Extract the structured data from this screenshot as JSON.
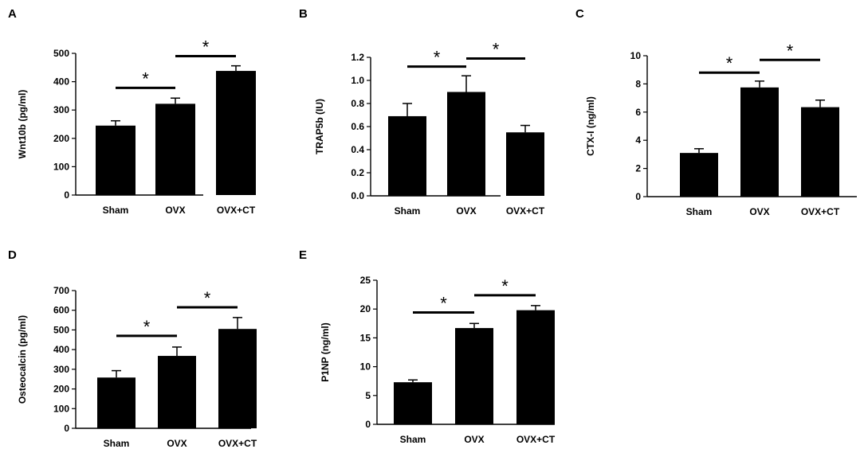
{
  "chart_data": [
    {
      "type": "bar",
      "panel": "A",
      "ylabel": "Wnt10b (pg/ml)",
      "categories": [
        "Sham",
        "OVX",
        "OVX+CT"
      ],
      "values": [
        245,
        322,
        438
      ],
      "errors": [
        17,
        20,
        18
      ],
      "ylim": [
        0,
        500
      ],
      "yticks": [
        0,
        100,
        200,
        300,
        400,
        500
      ],
      "significance": [
        {
          "from": 0,
          "to": 1,
          "y": 378,
          "label": "*"
        },
        {
          "from": 1,
          "to": 2,
          "y": 490,
          "label": "*"
        }
      ]
    },
    {
      "type": "bar",
      "panel": "B",
      "ylabel": "TRAP5b (IU)",
      "categories": [
        "Sham",
        "OVX",
        "OVX+CT"
      ],
      "values": [
        0.69,
        0.9,
        0.55
      ],
      "errors": [
        0.11,
        0.14,
        0.06
      ],
      "ylim": [
        0,
        1.2
      ],
      "yticks": [
        "0.0",
        "0.2",
        "0.4",
        "0.6",
        "0.8",
        "1.0",
        "1.2"
      ],
      "significance": [
        {
          "from": 0,
          "to": 1,
          "y": 1.12,
          "label": "*"
        },
        {
          "from": 1,
          "to": 2,
          "y": 1.19,
          "label": "*"
        }
      ]
    },
    {
      "type": "bar",
      "panel": "C",
      "ylabel": "CTX-I (ng/ml)",
      "categories": [
        "Sham",
        "OVX",
        "OVX+CT"
      ],
      "values": [
        3.1,
        7.75,
        6.35
      ],
      "errors": [
        0.3,
        0.45,
        0.5
      ],
      "ylim": [
        0,
        10
      ],
      "yticks": [
        0,
        2,
        4,
        6,
        8,
        10
      ],
      "significance": [
        {
          "from": 0,
          "to": 1,
          "y": 8.8,
          "label": "*"
        },
        {
          "from": 1,
          "to": 2,
          "y": 9.7,
          "label": "*"
        }
      ]
    },
    {
      "type": "bar",
      "panel": "D",
      "ylabel": "Osteocalcin (pg/ml)",
      "categories": [
        "Sham",
        "OVX",
        "OVX+CT"
      ],
      "values": [
        258,
        368,
        505
      ],
      "errors": [
        35,
        45,
        58
      ],
      "ylim": [
        0,
        700
      ],
      "yticks": [
        0,
        100,
        200,
        300,
        400,
        500,
        600,
        700
      ],
      "significance": [
        {
          "from": 0,
          "to": 1,
          "y": 470,
          "label": "*"
        },
        {
          "from": 1,
          "to": 2,
          "y": 615,
          "label": "*"
        }
      ]
    },
    {
      "type": "bar",
      "panel": "E",
      "ylabel": "P1NP (ng/ml)",
      "categories": [
        "Sham",
        "OVX",
        "OVX+CT"
      ],
      "values": [
        7.3,
        16.7,
        19.8
      ],
      "errors": [
        0.4,
        0.8,
        0.8
      ],
      "ylim": [
        0,
        25
      ],
      "yticks": [
        0,
        5,
        10,
        15,
        20,
        25
      ],
      "significance": [
        {
          "from": 0,
          "to": 1,
          "y": 19.4,
          "label": "*"
        },
        {
          "from": 1,
          "to": 2,
          "y": 22.4,
          "label": "*"
        }
      ]
    }
  ]
}
